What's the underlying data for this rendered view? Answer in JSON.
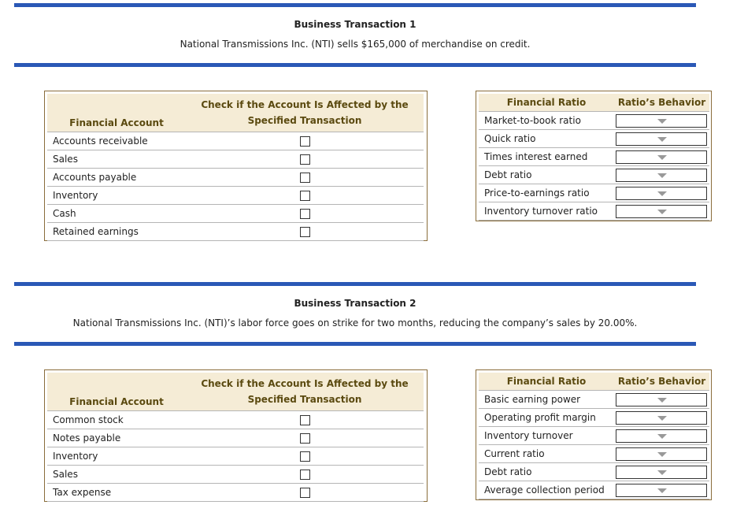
{
  "sections": [
    {
      "title": "Business Transaction 1",
      "description": "National Transmissions Inc. (NTI) sells $165,000 of merchandise on credit.",
      "accounts_header": [
        "Financial Account",
        "Check if the Account Is Affected by the Specified Transaction"
      ],
      "accounts": [
        {
          "name": "Accounts receivable",
          "checked": false
        },
        {
          "name": "Sales",
          "checked": false
        },
        {
          "name": "Accounts payable",
          "checked": false
        },
        {
          "name": "Inventory",
          "checked": false
        },
        {
          "name": "Cash",
          "checked": false
        },
        {
          "name": "Retained earnings",
          "checked": false
        }
      ],
      "ratios_header": [
        "Financial Ratio",
        "Ratio’s Behavior"
      ],
      "ratios": [
        {
          "name": "Market-to-book ratio",
          "value": ""
        },
        {
          "name": "Quick ratio",
          "value": ""
        },
        {
          "name": "Times interest earned",
          "value": ""
        },
        {
          "name": "Debt ratio",
          "value": ""
        },
        {
          "name": "Price-to-earnings ratio",
          "value": ""
        },
        {
          "name": "Inventory turnover ratio",
          "value": ""
        }
      ]
    },
    {
      "title": "Business Transaction 2",
      "description": "National Transmissions Inc. (NTI)’s labor force goes on strike for two months, reducing the company’s sales by 20.00%.",
      "accounts_header": [
        "Financial Account",
        "Check if the Account Is Affected by the Specified Transaction"
      ],
      "accounts": [
        {
          "name": "Common stock",
          "checked": false
        },
        {
          "name": "Notes payable",
          "checked": false
        },
        {
          "name": "Inventory",
          "checked": false
        },
        {
          "name": "Sales",
          "checked": false
        },
        {
          "name": "Tax expense",
          "checked": false
        }
      ],
      "ratios_header": [
        "Financial Ratio",
        "Ratio’s Behavior"
      ],
      "ratios": [
        {
          "name": "Basic earning power",
          "value": ""
        },
        {
          "name": "Operating profit margin",
          "value": ""
        },
        {
          "name": "Inventory turnover",
          "value": ""
        },
        {
          "name": "Current ratio",
          "value": ""
        },
        {
          "name": "Debt ratio",
          "value": ""
        },
        {
          "name": "Average collection period",
          "value": ""
        }
      ]
    }
  ],
  "colors": {
    "bar": "#2a58b6",
    "header_bg": "#f5ecd6",
    "header_text": "#5b4a10",
    "border": "#8a6d3b"
  }
}
